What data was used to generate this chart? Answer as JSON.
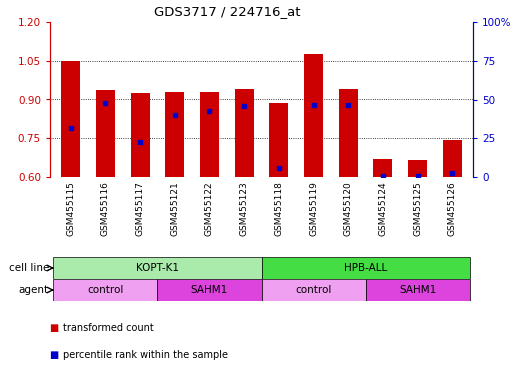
{
  "title": "GDS3717 / 224716_at",
  "samples": [
    "GSM455115",
    "GSM455116",
    "GSM455117",
    "GSM455121",
    "GSM455122",
    "GSM455123",
    "GSM455118",
    "GSM455119",
    "GSM455120",
    "GSM455124",
    "GSM455125",
    "GSM455126"
  ],
  "red_values": [
    1.05,
    0.935,
    0.925,
    0.93,
    0.93,
    0.94,
    0.885,
    1.075,
    0.94,
    0.67,
    0.665,
    0.745
  ],
  "blue_values": [
    0.79,
    0.885,
    0.735,
    0.84,
    0.855,
    0.875,
    0.635,
    0.88,
    0.88,
    0.605,
    0.605,
    0.615
  ],
  "ylim_left": [
    0.6,
    1.2
  ],
  "ylim_right": [
    0,
    100
  ],
  "yticks_left": [
    0.6,
    0.75,
    0.9,
    1.05,
    1.2
  ],
  "yticks_right": [
    0,
    25,
    50,
    75,
    100
  ],
  "bar_color": "#cc0000",
  "dot_color": "#0000cc",
  "cell_lines": [
    {
      "label": "KOPT-K1",
      "start": 0,
      "end": 6,
      "color": "#aaeaaa"
    },
    {
      "label": "HPB-ALL",
      "start": 6,
      "end": 12,
      "color": "#44dd44"
    }
  ],
  "agents": [
    {
      "label": "control",
      "start": 0,
      "end": 3,
      "color": "#f0a0f0"
    },
    {
      "label": "SAHM1",
      "start": 3,
      "end": 6,
      "color": "#dd44dd"
    },
    {
      "label": "control",
      "start": 6,
      "end": 9,
      "color": "#f0a0f0"
    },
    {
      "label": "SAHM1",
      "start": 9,
      "end": 12,
      "color": "#dd44dd"
    }
  ],
  "cell_line_label": "cell line",
  "agent_label": "agent",
  "legend_red": "transformed count",
  "legend_blue": "percentile rank within the sample",
  "xlabel_bg": "#dddddd",
  "plot_bg": "#ffffff"
}
